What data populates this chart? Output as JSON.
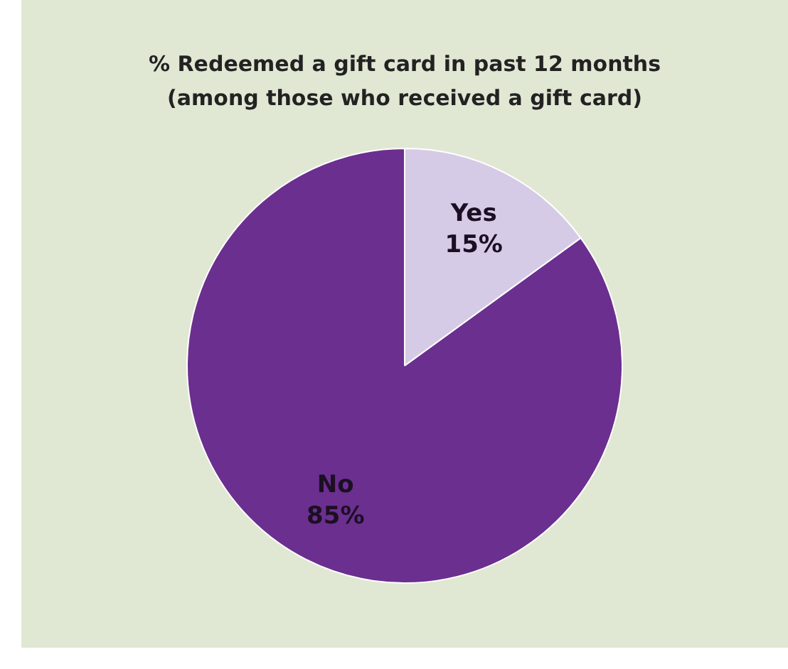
{
  "chart_data": {
    "type": "pie",
    "title": "% Redeemed a gift card in past 12 months\n(among those who received a gift card)",
    "categories": [
      "Yes",
      "No"
    ],
    "values": [
      15,
      85
    ],
    "colors": [
      "#d6cbe6",
      "#6b2f8f"
    ],
    "value_labels": [
      "15%",
      "85%"
    ],
    "legend": false
  }
}
